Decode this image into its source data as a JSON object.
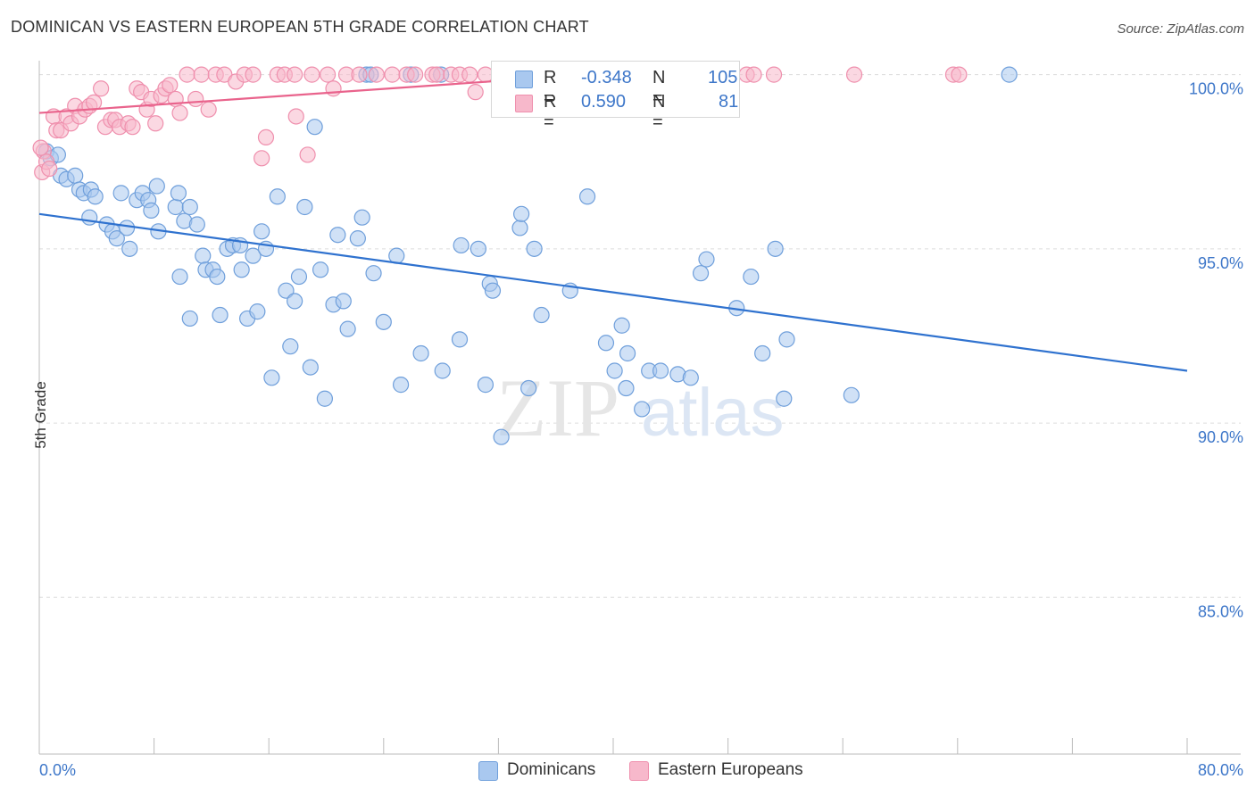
{
  "title": "DOMINICAN VS EASTERN EUROPEAN 5TH GRADE CORRELATION CHART",
  "source": "Source: ZipAtlas.com",
  "watermark": {
    "part1": "ZIP",
    "part2": "atlas"
  },
  "colors": {
    "blue_fill": "#a9c8ef",
    "blue_stroke": "#6f9fdb",
    "blue_line": "#2f72cf",
    "pink_fill": "#f7b8cb",
    "pink_stroke": "#ef8fad",
    "pink_line": "#e9638c",
    "tick_label": "#3e77c9",
    "grid": "#dcdcdc"
  },
  "stats": [
    {
      "r_label": "R =",
      "r_value": "-0.348",
      "n_label": "N =",
      "n_value": "105"
    },
    {
      "r_label": "R =",
      "r_value": "0.590",
      "n_label": "N =",
      "n_value": "81"
    }
  ],
  "legend": {
    "series1": "Dominicans",
    "series2": "Eastern Europeans"
  },
  "chart_data": {
    "type": "scatter",
    "title": "DOMINICAN VS EASTERN EUROPEAN 5TH GRADE CORRELATION CHART",
    "xlabel": "",
    "ylabel": "5th Grade",
    "xlim": [
      0,
      80
    ],
    "ylim": [
      80.5,
      100.4
    ],
    "x_tick_labels": [
      "0.0%",
      "80.0%"
    ],
    "y_ticks": [
      100,
      95,
      90,
      85
    ],
    "y_tick_labels": [
      "100.0%",
      "95.0%",
      "90.0%",
      "85.0%"
    ],
    "grid": true,
    "legend_position": "bottom",
    "series": [
      {
        "name": "Dominicans",
        "color": "#a9c8ef",
        "trend": {
          "x": [
            0,
            80
          ],
          "y": [
            96.0,
            91.5
          ]
        },
        "points": [
          [
            0.5,
            97.8
          ],
          [
            0.8,
            97.6
          ],
          [
            1.3,
            97.7
          ],
          [
            1.5,
            97.1
          ],
          [
            1.9,
            97.0
          ],
          [
            2.5,
            97.1
          ],
          [
            2.8,
            96.7
          ],
          [
            3.1,
            96.6
          ],
          [
            3.6,
            96.7
          ],
          [
            3.9,
            96.5
          ],
          [
            3.5,
            95.9
          ],
          [
            4.7,
            95.7
          ],
          [
            5.1,
            95.5
          ],
          [
            5.4,
            95.3
          ],
          [
            5.7,
            96.6
          ],
          [
            6.1,
            95.6
          ],
          [
            6.3,
            95.0
          ],
          [
            6.8,
            96.4
          ],
          [
            7.2,
            96.6
          ],
          [
            7.6,
            96.4
          ],
          [
            7.8,
            96.1
          ],
          [
            8.3,
            95.5
          ],
          [
            8.2,
            96.8
          ],
          [
            9.5,
            96.2
          ],
          [
            9.7,
            96.6
          ],
          [
            10.1,
            95.8
          ],
          [
            10.5,
            96.2
          ],
          [
            11.0,
            95.7
          ],
          [
            9.8,
            94.2
          ],
          [
            10.5,
            93.0
          ],
          [
            11.4,
            94.8
          ],
          [
            11.6,
            94.4
          ],
          [
            12.1,
            94.4
          ],
          [
            12.4,
            94.2
          ],
          [
            12.6,
            93.1
          ],
          [
            13.1,
            95.0
          ],
          [
            13.5,
            95.1
          ],
          [
            14.0,
            95.1
          ],
          [
            14.1,
            94.4
          ],
          [
            14.5,
            93.0
          ],
          [
            14.9,
            94.8
          ],
          [
            15.2,
            93.2
          ],
          [
            15.5,
            95.5
          ],
          [
            15.8,
            95.0
          ],
          [
            16.2,
            91.3
          ],
          [
            16.6,
            96.5
          ],
          [
            17.2,
            93.8
          ],
          [
            17.5,
            92.2
          ],
          [
            17.8,
            93.5
          ],
          [
            18.1,
            94.2
          ],
          [
            18.5,
            96.2
          ],
          [
            18.9,
            91.6
          ],
          [
            19.2,
            98.5
          ],
          [
            19.6,
            94.4
          ],
          [
            19.9,
            90.7
          ],
          [
            20.5,
            93.4
          ],
          [
            20.8,
            95.4
          ],
          [
            21.2,
            93.5
          ],
          [
            21.5,
            92.7
          ],
          [
            22.2,
            95.3
          ],
          [
            22.5,
            95.9
          ],
          [
            22.8,
            100.0
          ],
          [
            23.1,
            100.0
          ],
          [
            23.3,
            94.3
          ],
          [
            24.0,
            92.9
          ],
          [
            24.9,
            94.8
          ],
          [
            25.2,
            91.1
          ],
          [
            25.9,
            100.0
          ],
          [
            26.6,
            92.0
          ],
          [
            28.0,
            100.0
          ],
          [
            28.1,
            91.5
          ],
          [
            29.3,
            92.4
          ],
          [
            29.4,
            95.1
          ],
          [
            30.6,
            95.0
          ],
          [
            31.1,
            91.1
          ],
          [
            31.4,
            94.0
          ],
          [
            31.6,
            93.8
          ],
          [
            32.2,
            89.6
          ],
          [
            33.5,
            95.6
          ],
          [
            33.6,
            96.0
          ],
          [
            34.1,
            91.0
          ],
          [
            34.5,
            95.0
          ],
          [
            35.0,
            93.1
          ],
          [
            38.2,
            96.5
          ],
          [
            39.5,
            92.3
          ],
          [
            40.1,
            91.5
          ],
          [
            40.6,
            92.8
          ],
          [
            41.0,
            92.0
          ],
          [
            42.0,
            90.4
          ],
          [
            42.5,
            91.5
          ],
          [
            43.3,
            91.5
          ],
          [
            44.5,
            91.4
          ],
          [
            46.1,
            94.3
          ],
          [
            46.5,
            94.7
          ],
          [
            48.6,
            93.3
          ],
          [
            49.6,
            94.2
          ],
          [
            50.4,
            92.0
          ],
          [
            51.3,
            95.0
          ],
          [
            52.1,
            92.4
          ],
          [
            56.6,
            90.8
          ],
          [
            67.6,
            100.0
          ],
          [
            51.9,
            90.7
          ],
          [
            40.9,
            91.0
          ],
          [
            37.0,
            93.8
          ],
          [
            45.4,
            91.3
          ]
        ]
      },
      {
        "name": "Eastern Europeans",
        "color": "#f7b8cb",
        "trend": {
          "x": [
            0,
            40
          ],
          "y": [
            98.9,
            100.05
          ]
        },
        "points": [
          [
            0.2,
            97.2
          ],
          [
            0.3,
            97.8
          ],
          [
            0.5,
            97.5
          ],
          [
            0.7,
            97.3
          ],
          [
            1.0,
            98.8
          ],
          [
            1.2,
            98.4
          ],
          [
            1.5,
            98.4
          ],
          [
            1.9,
            98.8
          ],
          [
            2.2,
            98.6
          ],
          [
            2.5,
            99.1
          ],
          [
            2.8,
            98.8
          ],
          [
            3.2,
            99.0
          ],
          [
            3.5,
            99.1
          ],
          [
            3.8,
            99.2
          ],
          [
            4.3,
            99.6
          ],
          [
            4.6,
            98.5
          ],
          [
            5.0,
            98.7
          ],
          [
            5.3,
            98.7
          ],
          [
            5.6,
            98.5
          ],
          [
            6.2,
            98.6
          ],
          [
            6.5,
            98.5
          ],
          [
            6.8,
            99.6
          ],
          [
            7.1,
            99.5
          ],
          [
            7.5,
            99.0
          ],
          [
            7.8,
            99.3
          ],
          [
            8.1,
            98.6
          ],
          [
            8.5,
            99.4
          ],
          [
            8.8,
            99.6
          ],
          [
            9.1,
            99.7
          ],
          [
            9.5,
            99.3
          ],
          [
            9.8,
            98.9
          ],
          [
            10.3,
            100.0
          ],
          [
            10.9,
            99.3
          ],
          [
            11.3,
            100.0
          ],
          [
            11.8,
            99.0
          ],
          [
            12.3,
            100.0
          ],
          [
            12.9,
            100.0
          ],
          [
            13.7,
            99.8
          ],
          [
            14.3,
            100.0
          ],
          [
            14.9,
            100.0
          ],
          [
            15.5,
            97.6
          ],
          [
            15.8,
            98.2
          ],
          [
            16.6,
            100.0
          ],
          [
            17.1,
            100.0
          ],
          [
            17.8,
            100.0
          ],
          [
            17.9,
            98.8
          ],
          [
            18.7,
            97.7
          ],
          [
            19.0,
            100.0
          ],
          [
            20.1,
            100.0
          ],
          [
            20.5,
            99.6
          ],
          [
            21.4,
            100.0
          ],
          [
            22.3,
            100.0
          ],
          [
            23.5,
            100.0
          ],
          [
            24.6,
            100.0
          ],
          [
            25.6,
            100.0
          ],
          [
            26.2,
            100.0
          ],
          [
            27.4,
            100.0
          ],
          [
            27.7,
            100.0
          ],
          [
            28.7,
            100.0
          ],
          [
            29.3,
            100.0
          ],
          [
            30.0,
            100.0
          ],
          [
            30.4,
            99.5
          ],
          [
            31.1,
            100.0
          ],
          [
            32.6,
            100.0
          ],
          [
            33.2,
            100.0
          ],
          [
            34.8,
            100.0
          ],
          [
            36.1,
            100.0
          ],
          [
            38.6,
            100.0
          ],
          [
            40.3,
            100.0
          ],
          [
            41.1,
            100.0
          ],
          [
            43.5,
            100.0
          ],
          [
            45.3,
            100.0
          ],
          [
            46.9,
            100.0
          ],
          [
            47.9,
            100.0
          ],
          [
            49.3,
            100.0
          ],
          [
            49.8,
            100.0
          ],
          [
            51.2,
            100.0
          ],
          [
            56.8,
            100.0
          ],
          [
            63.7,
            100.0
          ],
          [
            64.1,
            100.0
          ],
          [
            0.1,
            97.9
          ]
        ]
      }
    ]
  }
}
